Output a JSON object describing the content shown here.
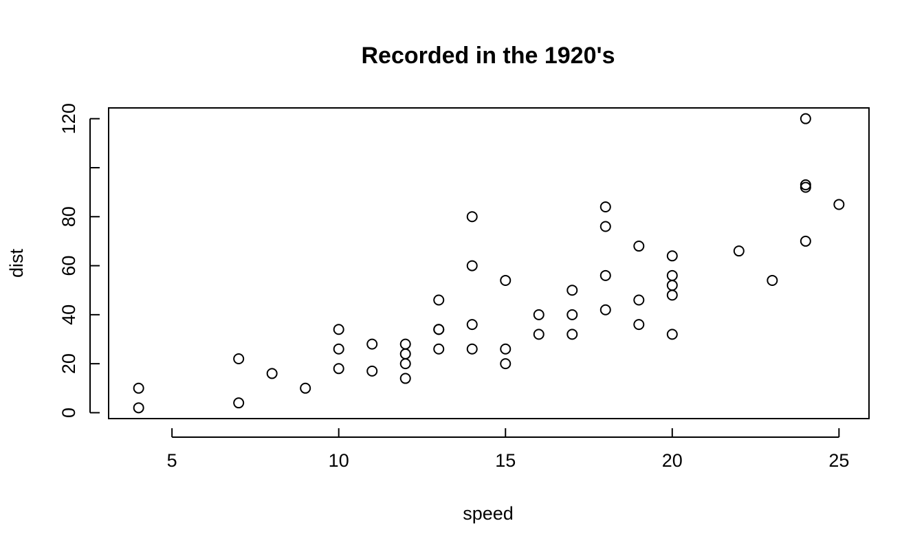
{
  "chart_data": {
    "type": "scatter",
    "title": "Recorded in the 1920's",
    "xlabel": "speed",
    "ylabel": "dist",
    "xlim": [
      3.1,
      25.9
    ],
    "ylim": [
      -2.4,
      124.4
    ],
    "x_ticks": [
      5,
      10,
      15,
      20,
      25
    ],
    "y_ticks": [
      0,
      20,
      40,
      60,
      80,
      100,
      120
    ],
    "y_tick_labels": [
      "0",
      "20",
      "40",
      "60",
      "80",
      "",
      "120"
    ],
    "grid": false,
    "legend": "none",
    "point_style": "open-circle",
    "point_color": "#000000",
    "x": [
      4,
      4,
      7,
      7,
      8,
      9,
      10,
      10,
      10,
      11,
      11,
      12,
      12,
      12,
      12,
      13,
      13,
      13,
      13,
      14,
      14,
      14,
      14,
      15,
      15,
      15,
      16,
      16,
      17,
      17,
      17,
      18,
      18,
      18,
      18,
      19,
      19,
      19,
      20,
      20,
      20,
      20,
      20,
      22,
      23,
      24,
      24,
      24,
      24,
      25
    ],
    "y": [
      2,
      10,
      4,
      22,
      16,
      10,
      18,
      26,
      34,
      17,
      28,
      14,
      20,
      24,
      28,
      26,
      34,
      34,
      46,
      26,
      36,
      60,
      80,
      20,
      26,
      54,
      32,
      40,
      32,
      40,
      50,
      42,
      56,
      76,
      84,
      36,
      46,
      68,
      32,
      48,
      52,
      56,
      64,
      66,
      54,
      70,
      92,
      93,
      120,
      85
    ]
  }
}
